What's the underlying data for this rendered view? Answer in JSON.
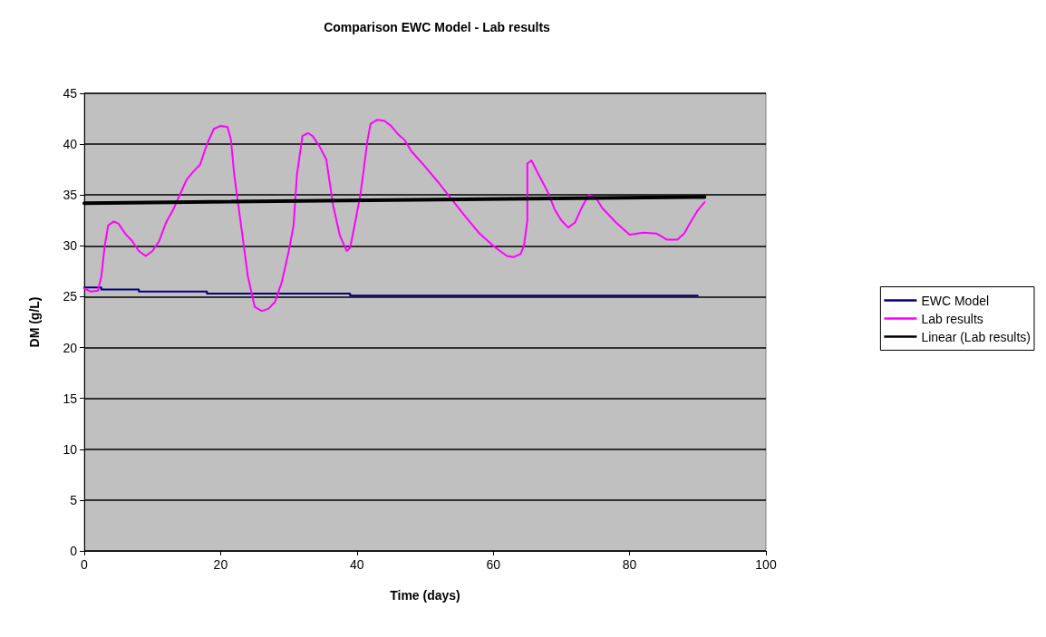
{
  "chart_data": {
    "type": "line",
    "title": "Comparison EWC Model - Lab results",
    "xlabel": "Time (days)",
    "ylabel": "DM (g/L)",
    "xlim": [
      0,
      100
    ],
    "xticks": [
      0,
      20,
      40,
      60,
      80,
      100
    ],
    "ylim": [
      0,
      45
    ],
    "yticks": [
      0,
      5,
      10,
      15,
      20,
      25,
      30,
      35,
      40,
      45
    ],
    "grid": "y",
    "legend": "right",
    "marker": "none",
    "line_style": "solid",
    "series": [
      {
        "name": "EWC Model",
        "type": "step",
        "color": "#000080",
        "x": [
          0,
          2.5,
          8,
          18,
          39,
          90
        ],
        "values": [
          25.9,
          25.7,
          25.5,
          25.3,
          25.1,
          25.1
        ]
      },
      {
        "name": "Lab results",
        "color": "#ff00ff",
        "x": [
          0,
          1,
          2,
          2.5,
          3,
          3.5,
          4.3,
          5,
          6,
          7,
          8,
          9,
          10,
          11,
          12,
          13,
          14,
          15,
          16,
          17,
          18,
          19,
          20,
          21,
          21.5,
          22,
          23,
          24,
          25,
          26,
          27,
          28,
          29,
          30,
          30.7,
          31.2,
          32,
          32.8,
          33.5,
          34.5,
          35.5,
          36.5,
          37.5,
          38.5,
          39,
          39.5,
          40.5,
          41,
          41.5,
          42,
          43,
          44,
          45,
          46,
          47,
          48,
          50,
          52,
          54,
          56,
          58,
          60,
          61,
          62,
          63,
          64,
          64.5,
          65,
          65,
          65.6,
          66.5,
          68,
          69,
          70,
          71,
          72,
          73,
          74,
          75,
          76,
          78,
          80,
          82,
          84,
          85.5,
          87,
          88,
          89,
          90,
          91
        ],
        "values": [
          25.8,
          25.5,
          25.6,
          27,
          30,
          32,
          32.4,
          32.2,
          31.2,
          30.5,
          29.5,
          29,
          29.5,
          30.5,
          32.3,
          33.5,
          35,
          36.5,
          37.3,
          38,
          40,
          41.5,
          41.8,
          41.7,
          40.5,
          37,
          32,
          27,
          24,
          23.6,
          23.8,
          24.5,
          26.5,
          29.5,
          32,
          37,
          40.8,
          41.1,
          40.8,
          39.8,
          38.5,
          34,
          31,
          29.5,
          29.8,
          31.5,
          35,
          37.5,
          40.2,
          42,
          42.4,
          42.3,
          41.8,
          41,
          40.4,
          39.3,
          37.8,
          36.2,
          34.5,
          32.8,
          31.2,
          30,
          29.5,
          29,
          28.9,
          29.2,
          30,
          32.5,
          38.1,
          38.4,
          37.2,
          35.3,
          33.6,
          32.5,
          31.8,
          32.3,
          33.8,
          35,
          34.8,
          33.7,
          32.3,
          31.1,
          31.3,
          31.2,
          30.6,
          30.6,
          31.2,
          32.4,
          33.5,
          34.3
        ]
      },
      {
        "name": "Linear (Lab results)",
        "color": "#000000",
        "x": [
          0,
          91
        ],
        "values": [
          34.2,
          34.8
        ]
      }
    ]
  }
}
